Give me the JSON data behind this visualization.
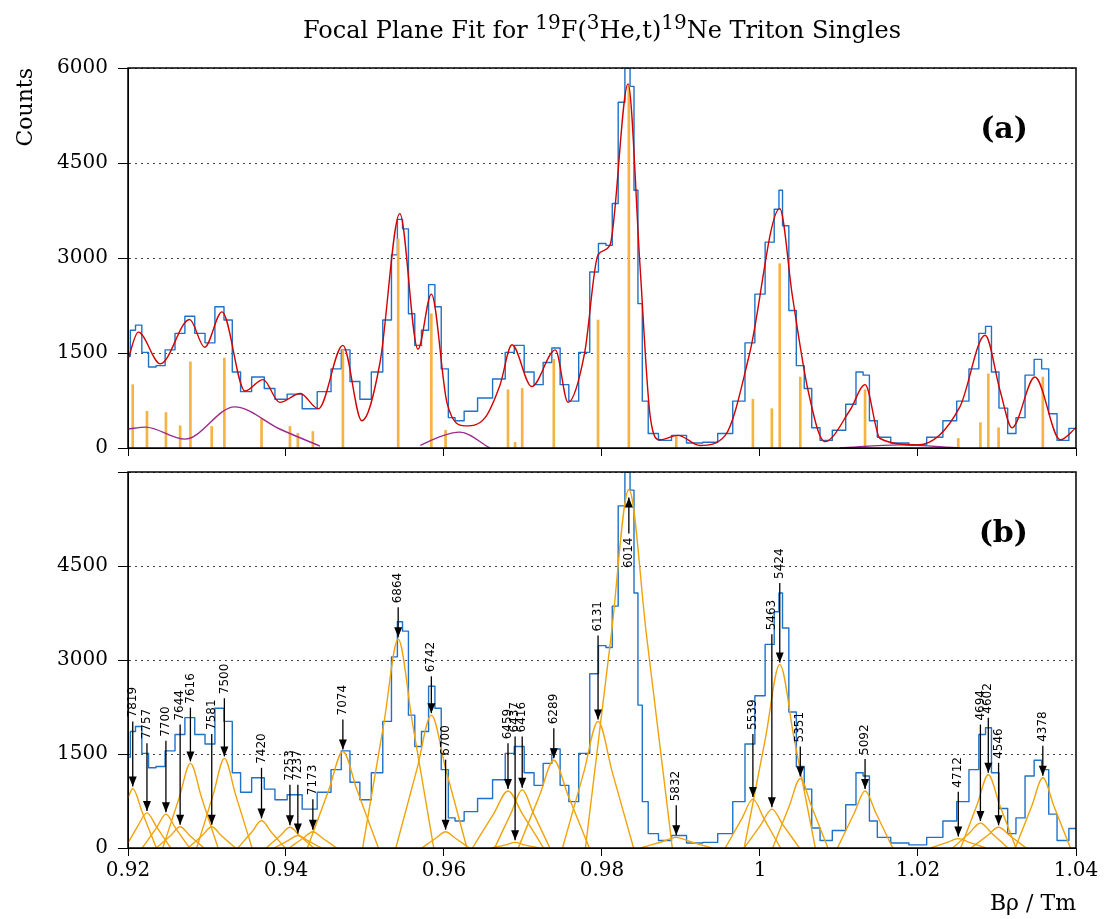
{
  "chart_data": [
    {
      "type": "step",
      "title": "Focal Plane Fit for $^{19}$F($^{3}$He,t)$^{19}$Ne Triton Singles",
      "ylabel": "Counts",
      "xlim": [
        0.92,
        1.04
      ],
      "xticks": [
        0.92,
        0.94,
        0.96,
        0.98,
        1,
        1.02,
        1.04
      ],
      "ylim": [
        0,
        6000
      ],
      "yticks": [
        0,
        1500,
        3000,
        4500,
        6000
      ],
      "grid": "y",
      "tick_labels": "y",
      "annotations": [
        "(a)"
      ],
      "series": [
        {
          "color": "#1f72c8",
          "x": [
            0.92,
            0.9206,
            0.9213,
            0.9222,
            0.923,
            0.9241,
            0.9253,
            0.9266,
            0.9278,
            0.9291,
            0.9304,
            0.9316,
            0.9327,
            0.9337,
            0.9348,
            0.9365,
            0.938,
            0.9392,
            0.9411,
            0.943,
            0.9449,
            0.9465,
            0.9475,
            0.9487,
            0.95,
            0.9516,
            0.9529,
            0.9538,
            0.9544,
            0.9551,
            0.9559,
            0.9567,
            0.9576,
            0.9585,
            0.9592,
            0.9601,
            0.961,
            0.9618,
            0.9633,
            0.9652,
            0.9671,
            0.9684,
            0.9694,
            0.9709,
            0.9719,
            0.9732,
            0.9741,
            0.9753,
            0.9763,
            0.9778,
            0.9791,
            0.98,
            0.981,
            0.9816,
            0.9825,
            0.9833,
            0.9838,
            0.9843,
            0.9848,
            0.9854,
            0.9863,
            0.988,
            0.9896,
            0.9918,
            0.9937,
            0.9956,
            0.9975,
            0.9987,
            1.0,
            1.0013,
            1.0023,
            1.0025,
            1.0032,
            1.0041,
            1.0051,
            1.0061,
            1.007,
            1.0082,
            1.0101,
            1.0116,
            1.0127,
            1.0134,
            1.0143,
            1.0154,
            1.0177,
            1.02,
            1.0222,
            1.0241,
            1.0257,
            1.0272,
            1.0282,
            1.0289,
            1.0297,
            1.0308,
            1.0319,
            1.0329,
            1.0342,
            1.0352,
            1.0361,
            1.037,
            1.0382,
            1.04
          ],
          "values": [
            1450,
            1860,
            1940,
            1510,
            1280,
            1300,
            1550,
            1810,
            2080,
            1810,
            1660,
            2230,
            2020,
            1200,
            890,
            1120,
            940,
            770,
            850,
            620,
            890,
            1250,
            1550,
            1050,
            770,
            1200,
            2020,
            3050,
            3610,
            3460,
            2120,
            1620,
            1860,
            2580,
            2230,
            1250,
            480,
            430,
            580,
            790,
            1090,
            1510,
            1620,
            1200,
            1000,
            1350,
            1580,
            1000,
            740,
            1510,
            2780,
            3230,
            3200,
            3860,
            5460,
            6000,
            5710,
            4070,
            2280,
            740,
            230,
            120,
            200,
            80,
            90,
            230,
            740,
            1660,
            2430,
            3250,
            3770,
            4070,
            3510,
            2170,
            1300,
            940,
            320,
            120,
            280,
            690,
            1200,
            1150,
            430,
            170,
            80,
            50,
            170,
            430,
            740,
            1250,
            1810,
            1920,
            1200,
            630,
            230,
            480,
            1150,
            1400,
            1250,
            540,
            120,
            310
          ]
        },
        {
          "type": "line",
          "color": "#d40000",
          "x": [
            0.92,
            0.9213,
            0.9241,
            0.9278,
            0.9297,
            0.9319,
            0.9348,
            0.9371,
            0.9392,
            0.9418,
            0.9441,
            0.9472,
            0.9496,
            0.9519,
            0.9544,
            0.9567,
            0.9584,
            0.9604,
            0.9627,
            0.9652,
            0.9671,
            0.9686,
            0.9711,
            0.9741,
            0.9757,
            0.9778,
            0.9795,
            0.981,
            0.9833,
            0.9848,
            0.9861,
            0.9873,
            0.9896,
            0.9924,
            0.9956,
            0.9987,
            1.0025,
            1.0041,
            1.0061,
            1.0082,
            1.0114,
            1.0133,
            1.0152,
            1.02,
            1.0253,
            1.0285,
            1.0304,
            1.0319,
            1.0348,
            1.038,
            1.04
          ],
          "values": [
            1400,
            1830,
            1330,
            2030,
            1590,
            2150,
            900,
            1080,
            720,
            860,
            620,
            1620,
            430,
            1350,
            3700,
            1560,
            2430,
            700,
            350,
            480,
            1000,
            1630,
            970,
            1550,
            720,
            1500,
            3050,
            3200,
            5750,
            2900,
            500,
            130,
            200,
            40,
            200,
            1500,
            3780,
            2400,
            900,
            100,
            600,
            1000,
            150,
            50,
            650,
            1780,
            900,
            320,
            1120,
            130,
            320
          ]
        },
        {
          "type": "line",
          "color": "#9b2b8e",
          "x": [
            0.92,
            0.9222,
            0.9272,
            0.9335,
            0.9392,
            0.9443,
            0.9494,
            0.957,
            0.9595,
            0.962,
            0.9658,
            0.9924,
            1.0101,
            1.0177,
            1.0253
          ],
          "values": [
            300,
            330,
            140,
            650,
            300,
            30,
            null,
            40,
            180,
            250,
            0,
            null,
            0,
            50,
            0
          ]
        },
        {
          "type": "bar",
          "color": "#f5b342",
          "x": [
            0.9206,
            0.9224,
            0.9248,
            0.9266,
            0.9279,
            0.9306,
            0.9322,
            0.9369,
            0.9405,
            0.9415,
            0.9434,
            0.9472,
            0.9542,
            0.9584,
            0.9602,
            0.9681,
            0.969,
            0.9699,
            0.9739,
            0.9795,
            0.9834,
            0.9894,
            0.9991,
            1.0015,
            1.0025,
            1.0051,
            1.0133,
            1.0251,
            1.0279,
            1.0289,
            1.0302,
            1.0358
          ],
          "values": [
            1000,
            580,
            560,
            350,
            1360,
            340,
            1420,
            460,
            340,
            230,
            260,
            1550,
            3300,
            2120,
            280,
            920,
            90,
            940,
            1400,
            2020,
            5710,
            200,
            770,
            620,
            2910,
            1120,
            920,
            150,
            400,
            1170,
            320,
            1120
          ]
        }
      ]
    },
    {
      "type": "step",
      "xlabel": "Bρ / Tm",
      "xlim": [
        0.92,
        1.04
      ],
      "xticks": [
        0.92,
        0.94,
        0.96,
        0.98,
        1,
        1.02,
        1.04
      ],
      "ylim": [
        0,
        6000
      ],
      "yticks": [
        0,
        1500,
        3000,
        4500,
        {
          "value": 6000,
          "label": null
        }
      ],
      "grid": "y",
      "annotations": [
        "(b)",
        {
          "text": "7819",
          "x": 0.9206,
          "y": 950
        },
        {
          "text": "7757",
          "x": 0.9224,
          "y": 560
        },
        {
          "text": "7700",
          "x": 0.9248,
          "y": 540
        },
        {
          "text": "7644",
          "x": 0.9266,
          "y": 340
        },
        {
          "text": "7616",
          "x": 0.9279,
          "y": 1350
        },
        {
          "text": "7581",
          "x": 0.9306,
          "y": 340
        },
        {
          "text": "7500",
          "x": 0.9322,
          "y": 1430
        },
        {
          "text": "7420",
          "x": 0.9369,
          "y": 440
        },
        {
          "text": "7253",
          "x": 0.9405,
          "y": 330
        },
        {
          "text": "7237",
          "x": 0.9415,
          "y": 200
        },
        {
          "text": "7173",
          "x": 0.9434,
          "y": 260
        },
        {
          "text": "7074",
          "x": 0.9472,
          "y": 1540
        },
        {
          "text": "6864",
          "x": 0.9542,
          "y": 3330
        },
        {
          "text": "6742",
          "x": 0.9584,
          "y": 2120
        },
        {
          "text": "6700",
          "x": 0.9602,
          "y": 260
        },
        {
          "text": "6459",
          "x": 0.9681,
          "y": 910
        },
        {
          "text": "6437",
          "x": 0.969,
          "y": 90
        },
        {
          "text": "6416",
          "x": 0.9699,
          "y": 930
        },
        {
          "text": "6289",
          "x": 0.9739,
          "y": 1400
        },
        {
          "text": "6131",
          "x": 0.9795,
          "y": 2020
        },
        {
          "text": "6014",
          "x": 0.9834,
          "y": 5720
        },
        {
          "text": "5832",
          "x": 0.9894,
          "y": 170
        },
        {
          "text": "5539",
          "x": 0.9991,
          "y": 780
        },
        {
          "text": "5463",
          "x": 1.0015,
          "y": 620
        },
        {
          "text": "5424",
          "x": 1.0025,
          "y": 2930
        },
        {
          "text": "5351",
          "x": 1.0051,
          "y": 1110
        },
        {
          "text": "5092",
          "x": 1.0133,
          "y": 910
        },
        {
          "text": "4712",
          "x": 1.0251,
          "y": 150
        },
        {
          "text": "4694",
          "x": 1.0279,
          "y": 400
        },
        {
          "text": "4602",
          "x": 1.0289,
          "y": 1170
        },
        {
          "text": "4546",
          "x": 1.0302,
          "y": 330
        },
        {
          "text": "4378",
          "x": 1.0358,
          "y": 1120
        }
      ],
      "series": [
        {
          "color": "#1f72c8",
          "x": [
            0.92,
            0.9206,
            0.9213,
            0.9222,
            0.923,
            0.9241,
            0.9253,
            0.9266,
            0.9278,
            0.9291,
            0.9304,
            0.9316,
            0.9327,
            0.9337,
            0.9348,
            0.9365,
            0.938,
            0.9392,
            0.9411,
            0.943,
            0.9449,
            0.9465,
            0.9475,
            0.9487,
            0.95,
            0.9516,
            0.9529,
            0.9538,
            0.9544,
            0.9551,
            0.9559,
            0.9567,
            0.9576,
            0.9585,
            0.9592,
            0.9601,
            0.961,
            0.9618,
            0.9633,
            0.9652,
            0.9671,
            0.9684,
            0.9694,
            0.9709,
            0.9719,
            0.9732,
            0.9741,
            0.9753,
            0.9763,
            0.9778,
            0.9791,
            0.98,
            0.981,
            0.9816,
            0.9825,
            0.9833,
            0.9838,
            0.9843,
            0.9848,
            0.9854,
            0.9863,
            0.988,
            0.9896,
            0.9918,
            0.9937,
            0.9956,
            0.9975,
            0.9987,
            1.0,
            1.0013,
            1.0023,
            1.0025,
            1.0032,
            1.0041,
            1.0051,
            1.0061,
            1.007,
            1.0082,
            1.0101,
            1.0116,
            1.0127,
            1.0134,
            1.0143,
            1.0154,
            1.0177,
            1.02,
            1.0222,
            1.0241,
            1.0257,
            1.0272,
            1.0282,
            1.0289,
            1.0297,
            1.0308,
            1.0319,
            1.0329,
            1.0342,
            1.0352,
            1.0361,
            1.037,
            1.0382,
            1.04
          ],
          "values": [
            1450,
            1860,
            1940,
            1510,
            1280,
            1300,
            1550,
            1810,
            2080,
            1810,
            1660,
            2230,
            2020,
            1200,
            890,
            1120,
            940,
            770,
            850,
            620,
            890,
            1250,
            1550,
            1050,
            770,
            1200,
            2020,
            3050,
            3610,
            3460,
            2120,
            1620,
            1860,
            2580,
            2230,
            1250,
            480,
            430,
            580,
            790,
            1090,
            1510,
            1620,
            1200,
            1000,
            1350,
            1580,
            1000,
            740,
            1510,
            2780,
            3230,
            3200,
            3860,
            5460,
            6000,
            5710,
            4070,
            2280,
            740,
            230,
            120,
            200,
            80,
            90,
            230,
            740,
            1660,
            2430,
            3250,
            3770,
            4070,
            3510,
            2170,
            1300,
            940,
            320,
            120,
            280,
            690,
            1200,
            1150,
            430,
            170,
            80,
            50,
            170,
            430,
            740,
            1250,
            1810,
            1920,
            1200,
            630,
            230,
            480,
            1150,
            1400,
            1250,
            540,
            120,
            310
          ]
        },
        {
          "type": "line",
          "color": "#f0a30a",
          "x": [
            0.92,
            0.9206,
            0.9218,
            0.9236
          ],
          "values": [
            800,
            950,
            570,
            0
          ]
        },
        {
          "type": "line",
          "color": "#f0a30a",
          "x": [
            0.92,
            0.9212,
            0.9224,
            0.9236,
            0.9254
          ],
          "values": [
            80,
            340,
            560,
            340,
            0
          ]
        },
        {
          "type": "line",
          "color": "#f0a30a",
          "x": [
            0.9218,
            0.9236,
            0.9248,
            0.926,
            0.9278
          ],
          "values": [
            0,
            320,
            540,
            320,
            0
          ]
        },
        {
          "type": "line",
          "color": "#f0a30a",
          "x": [
            0.9236,
            0.9254,
            0.9266,
            0.9278,
            0.9296
          ],
          "values": [
            0,
            200,
            340,
            200,
            0
          ]
        },
        {
          "type": "line",
          "color": "#f0a30a",
          "x": [
            0.9244,
            0.9265,
            0.9279,
            0.9293,
            0.9314
          ],
          "values": [
            0,
            810,
            1350,
            810,
            0
          ]
        },
        {
          "type": "line",
          "color": "#f0a30a",
          "x": [
            0.9276,
            0.9294,
            0.9306,
            0.9318,
            0.9336
          ],
          "values": [
            0,
            200,
            340,
            200,
            0
          ]
        },
        {
          "type": "line",
          "color": "#f0a30a",
          "x": [
            0.9287,
            0.9308,
            0.9322,
            0.9336,
            0.9357
          ],
          "values": [
            0,
            860,
            1430,
            860,
            0
          ]
        },
        {
          "type": "line",
          "color": "#f0a30a",
          "x": [
            0.9339,
            0.9357,
            0.9369,
            0.9381,
            0.9399
          ],
          "values": [
            0,
            260,
            440,
            260,
            0
          ]
        },
        {
          "type": "line",
          "color": "#f0a30a",
          "x": [
            0.9375,
            0.9393,
            0.9405,
            0.9417,
            0.9435
          ],
          "values": [
            0,
            200,
            330,
            200,
            0
          ]
        },
        {
          "type": "line",
          "color": "#f0a30a",
          "x": [
            0.9385,
            0.9403,
            0.9415,
            0.9427,
            0.9445
          ],
          "values": [
            0,
            120,
            200,
            120,
            0
          ]
        },
        {
          "type": "line",
          "color": "#f0a30a",
          "x": [
            0.9404,
            0.9422,
            0.9434,
            0.9446,
            0.9464
          ],
          "values": [
            0,
            160,
            260,
            160,
            0
          ]
        },
        {
          "type": "line",
          "color": "#f0a30a",
          "x": [
            0.9427,
            0.9454,
            0.9472,
            0.949,
            0.9517
          ],
          "values": [
            0,
            920,
            1540,
            920,
            0
          ]
        },
        {
          "type": "line",
          "color": "#f0a30a",
          "x": [
            0.9497,
            0.9524,
            0.9542,
            0.956,
            0.9587
          ],
          "values": [
            0,
            2000,
            3330,
            2000,
            0
          ]
        },
        {
          "type": "line",
          "color": "#f0a30a",
          "x": [
            0.9539,
            0.9566,
            0.9584,
            0.9602,
            0.9629
          ],
          "values": [
            0,
            1270,
            2120,
            1270,
            0
          ]
        },
        {
          "type": "line",
          "color": "#f0a30a",
          "x": [
            0.9572,
            0.959,
            0.9602,
            0.9614,
            0.9632
          ],
          "values": [
            0,
            160,
            260,
            160,
            0
          ]
        },
        {
          "type": "line",
          "color": "#f0a30a",
          "x": [
            0.9636,
            0.9663,
            0.9681,
            0.9699,
            0.9726
          ],
          "values": [
            0,
            550,
            910,
            550,
            0
          ]
        },
        {
          "type": "line",
          "color": "#f0a30a",
          "x": [
            0.966,
            0.9678,
            0.969,
            0.9702,
            0.972
          ],
          "values": [
            0,
            50,
            90,
            50,
            0
          ]
        },
        {
          "type": "line",
          "color": "#f0a30a",
          "x": [
            0.9664,
            0.9685,
            0.9699,
            0.9713,
            0.9734
          ],
          "values": [
            0,
            560,
            930,
            560,
            0
          ]
        },
        {
          "type": "line",
          "color": "#f0a30a",
          "x": [
            0.9694,
            0.9721,
            0.9739,
            0.9757,
            0.9784
          ],
          "values": [
            0,
            840,
            1400,
            840,
            0
          ]
        },
        {
          "type": "line",
          "color": "#f0a30a",
          "x": [
            0.975,
            0.9777,
            0.9795,
            0.9813,
            0.984
          ],
          "values": [
            0,
            1210,
            2020,
            1210,
            0
          ]
        },
        {
          "type": "line",
          "color": "#f0a30a",
          "x": [
            0.9779,
            0.9812,
            0.9834,
            0.9856,
            0.9889
          ],
          "values": [
            0,
            3430,
            5720,
            3430,
            0
          ]
        },
        {
          "type": "line",
          "color": "#f0a30a",
          "x": [
            0.9849,
            0.9876,
            0.9894,
            0.9912,
            0.9939
          ],
          "values": [
            0,
            100,
            170,
            100,
            0
          ]
        },
        {
          "type": "line",
          "color": "#f0a30a",
          "x": [
            0.9956,
            0.9977,
            0.9991,
            1.0005,
            1.0026
          ],
          "values": [
            0,
            470,
            780,
            470,
            0
          ]
        },
        {
          "type": "line",
          "color": "#f0a30a",
          "x": [
            0.998,
            1.0001,
            1.0015,
            1.0029,
            1.005
          ],
          "values": [
            0,
            370,
            620,
            370,
            0
          ]
        },
        {
          "type": "line",
          "color": "#f0a30a",
          "x": [
            0.998,
            1.0007,
            1.0025,
            1.0043,
            1.007
          ],
          "values": [
            0,
            1760,
            2930,
            1760,
            0
          ]
        },
        {
          "type": "line",
          "color": "#f0a30a",
          "x": [
            1.0016,
            1.0037,
            1.0051,
            1.0065,
            1.0086
          ],
          "values": [
            0,
            670,
            1110,
            670,
            0
          ]
        },
        {
          "type": "line",
          "color": "#f0a30a",
          "x": [
            1.0098,
            1.0119,
            1.0133,
            1.0147,
            1.0168
          ],
          "values": [
            0,
            550,
            910,
            550,
            0
          ]
        },
        {
          "type": "line",
          "color": "#f0a30a",
          "x": [
            1.0216,
            1.0237,
            1.0251,
            1.0265,
            1.0286
          ],
          "values": [
            0,
            90,
            150,
            90,
            0
          ]
        },
        {
          "type": "line",
          "color": "#f0a30a",
          "x": [
            1.0244,
            1.0265,
            1.0279,
            1.0293,
            1.0314
          ],
          "values": [
            0,
            240,
            400,
            240,
            0
          ]
        },
        {
          "type": "line",
          "color": "#f0a30a",
          "x": [
            1.0254,
            1.0275,
            1.0289,
            1.0303,
            1.0324
          ],
          "values": [
            0,
            700,
            1170,
            700,
            0
          ]
        },
        {
          "type": "line",
          "color": "#f0a30a",
          "x": [
            1.0267,
            1.0288,
            1.0302,
            1.0316,
            1.0337
          ],
          "values": [
            0,
            200,
            330,
            200,
            0
          ]
        },
        {
          "type": "line",
          "color": "#f0a30a",
          "x": [
            1.0323,
            1.0344,
            1.0358,
            1.0372,
            1.0393
          ],
          "values": [
            0,
            670,
            1120,
            670,
            0
          ]
        }
      ]
    }
  ]
}
